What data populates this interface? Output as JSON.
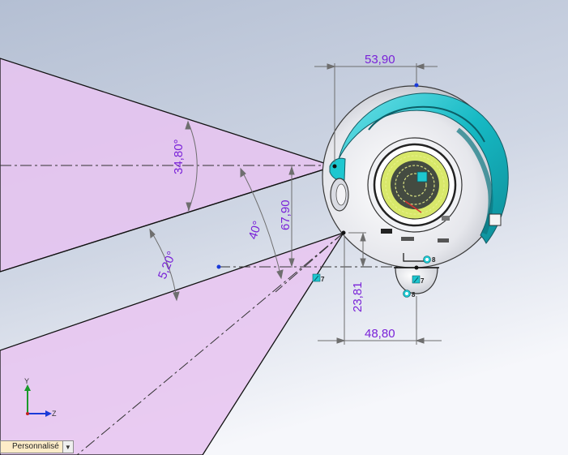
{
  "dimensions": {
    "top_width": "53,90",
    "angle_upper": "34,80°",
    "height_vertical": "67,90",
    "angle_middle": "40°",
    "angle_lower": "5,20°",
    "offset_vertical": "23,81",
    "bottom_width": "48,80"
  },
  "markers": {
    "relation_a": "7",
    "relation_b": "8",
    "relation_c": "7",
    "relation_d": "8"
  },
  "triad": {
    "y_label": "Y",
    "z_label": "Z"
  },
  "view_selector": {
    "label": "Personnalisé"
  },
  "colors": {
    "dimension": "#7a22d8",
    "body_teal": "#1ec7d0",
    "cone_fill": "#e8c8f0",
    "background_top": "#b9c3d6",
    "background_bottom": "#f4f5fa"
  }
}
